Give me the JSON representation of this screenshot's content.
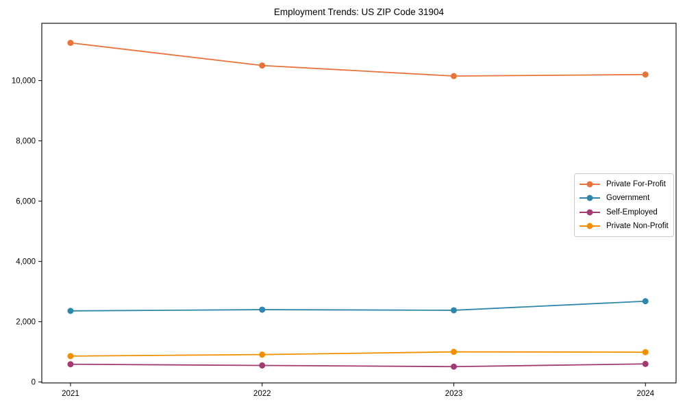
{
  "figure": {
    "background": "#ffffff"
  },
  "chart_data": {
    "type": "line",
    "title": "Employment Trends: US ZIP Code 31904",
    "xlabel": "",
    "ylabel": "",
    "x": [
      2021,
      2022,
      2023,
      2024
    ],
    "x_tick_labels": [
      "2021",
      "2022",
      "2023",
      "2024"
    ],
    "series": [
      {
        "name": "Private For-Profit",
        "color": "#E8743B",
        "values": [
          11250,
          10500,
          10150,
          10200
        ]
      },
      {
        "name": "Government",
        "color": "#2E86AB",
        "values": [
          2360,
          2400,
          2380,
          2680
        ]
      },
      {
        "name": "Self-Employed",
        "color": "#A23B72",
        "values": [
          590,
          550,
          510,
          600
        ]
      },
      {
        "name": "Private Non-Profit",
        "color": "#F18F01",
        "values": [
          860,
          910,
          1000,
          990
        ]
      }
    ],
    "y_ticks": [
      0,
      2000,
      4000,
      6000,
      8000,
      10000
    ],
    "y_tick_labels": [
      "0",
      "2,000",
      "4,000",
      "6,000",
      "8,000",
      "10,000"
    ],
    "xlim": [
      2020.85,
      2024.16
    ],
    "ylim": [
      -30,
      11900
    ],
    "grid": false,
    "legend_position": "center-right",
    "marker": "o"
  }
}
